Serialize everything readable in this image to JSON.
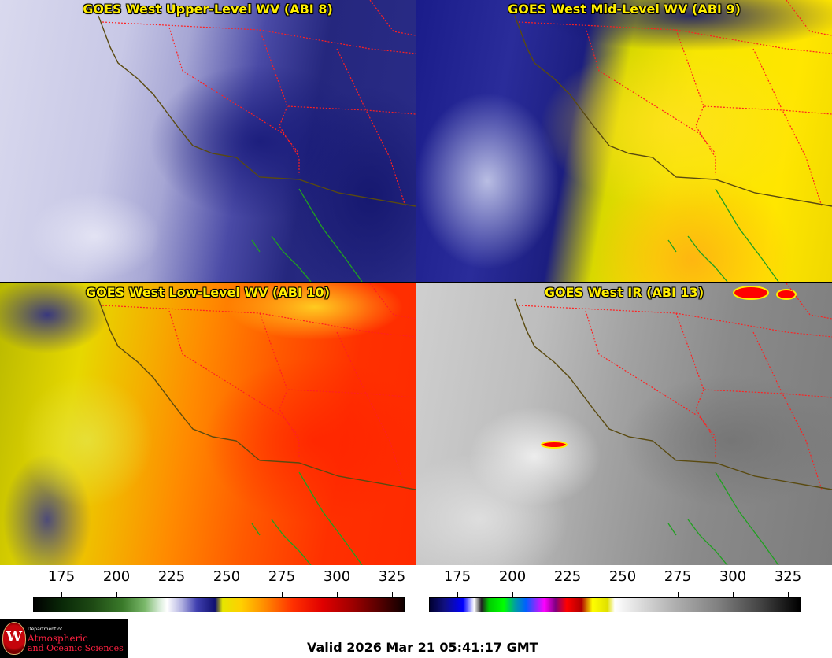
{
  "panels": {
    "upper": {
      "title": "GOES West Upper-Level WV (ABI 8)"
    },
    "mid": {
      "title": "GOES West Mid-Level WV (ABI 9)"
    },
    "low": {
      "title": "GOES West Low-Level WV (ABI 10)"
    },
    "ir": {
      "title": "GOES West IR (ABI 13)"
    }
  },
  "colorbars": {
    "water_vapor": {
      "ticks": [
        "175",
        "200",
        "225",
        "250",
        "275",
        "300",
        "325"
      ]
    },
    "infrared": {
      "ticks": [
        "175",
        "200",
        "225",
        "250",
        "275",
        "300",
        "325"
      ]
    }
  },
  "logo": {
    "line1": "Department of",
    "line2": "Atmospheric",
    "line3": "and Oceanic Sciences",
    "crest_letter": "W"
  },
  "footer": {
    "valid_time": "Valid 2026 Mar 21 05:41:17 GMT"
  },
  "colors": {
    "title_text": "#ffee00",
    "state_borders": "#ff2020",
    "us_coastline": "#5a4a10",
    "mexico_coastline": "#20a020"
  }
}
